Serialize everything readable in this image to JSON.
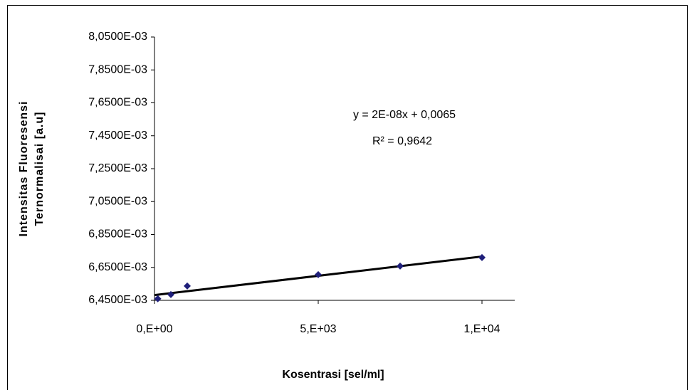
{
  "chart_data": {
    "type": "scatter",
    "xlabel": "Kosentrasi [sel/ml]",
    "ylabel": [
      "Intensitas Fluoresensi",
      "Ternormalisai [a.u]"
    ],
    "annotations": [
      "y = 2E-08x + 0,0065",
      "R² = 0,9642"
    ],
    "x": [
      100,
      500,
      1000,
      5000,
      7500,
      10000
    ],
    "values": [
      0.00646,
      0.006485,
      0.006537,
      0.006606,
      0.006658,
      0.00671
    ],
    "color": "#1f1f7a",
    "trendline": true,
    "xlim": [
      0,
      11000
    ],
    "xticks": [
      {
        "value": 0,
        "label": "0,E+00"
      },
      {
        "value": 5000,
        "label": "5,E+03"
      },
      {
        "value": 10000,
        "label": "1,E+04"
      }
    ],
    "ylim": [
      0.00645,
      0.00805
    ],
    "yticks": [
      {
        "value": 0.00645,
        "label": "6,4500E-03"
      },
      {
        "value": 0.00665,
        "label": "6,6500E-03"
      },
      {
        "value": 0.00685,
        "label": "6,8500E-03"
      },
      {
        "value": 0.00705,
        "label": "7,0500E-03"
      },
      {
        "value": 0.00725,
        "label": "7,2500E-03"
      },
      {
        "value": 0.00745,
        "label": "7,4500E-03"
      },
      {
        "value": 0.00765,
        "label": "7,6500E-03"
      },
      {
        "value": 0.00785,
        "label": "7,8500E-03"
      },
      {
        "value": 0.00805,
        "label": "8,0500E-03"
      }
    ]
  }
}
